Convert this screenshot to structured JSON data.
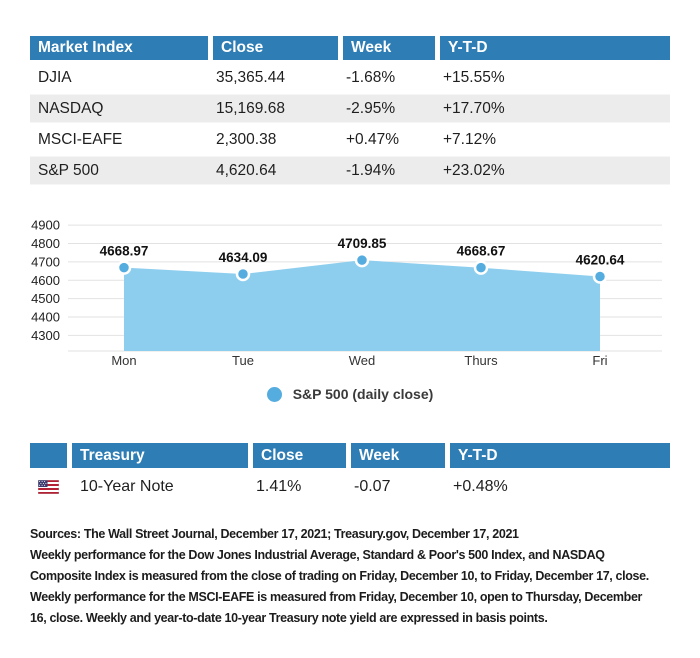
{
  "colors": {
    "header_blue": "#2e7db4",
    "row_stripe": "#ececec",
    "area_fill": "#8dceef",
    "marker_blue": "#55acdf",
    "gridline": "#e2e2e2",
    "flag_red": "#b22234",
    "flag_canton": "#3c3b6e"
  },
  "market_table": {
    "headers": [
      "Market Index",
      "Close",
      "Week",
      "Y-T-D"
    ],
    "rows": [
      {
        "name": "DJIA",
        "close": "35,365.44",
        "week": "-1.68%",
        "ytd": "+15.55%",
        "shaded": false
      },
      {
        "name": "NASDAQ",
        "close": "15,169.68",
        "week": "-2.95%",
        "ytd": "+17.70%",
        "shaded": true
      },
      {
        "name": "MSCI-EAFE",
        "close": "2,300.38",
        "week": "+0.47%",
        "ytd": "+7.12%",
        "shaded": false
      },
      {
        "name": "S&P 500",
        "close": "4,620.64",
        "week": "-1.94%",
        "ytd": "+23.02%",
        "shaded": true
      }
    ]
  },
  "chart_data": {
    "type": "area",
    "title": "",
    "xlabel": "",
    "ylabel": "",
    "categories": [
      "Mon",
      "Tue",
      "Wed",
      "Thurs",
      "Fri"
    ],
    "values": [
      4668.97,
      4634.09,
      4709.85,
      4668.67,
      4620.64
    ],
    "point_labels": [
      "4668.97",
      "4634.09",
      "4709.85",
      "4668.67",
      "4620.64"
    ],
    "yticks": [
      4900,
      4800,
      4700,
      4600,
      4500,
      4400,
      4300
    ],
    "ylim": [
      4215,
      4950
    ],
    "grid": true,
    "legend_position": "bottom",
    "series_name": "S&P 500 (daily close)"
  },
  "legend": {
    "label": "S&P 500 (daily close)",
    "dot_icon": "legend-dot-icon"
  },
  "treasury_table": {
    "headers": [
      "",
      "Treasury",
      "Close",
      "Week",
      "Y-T-D"
    ],
    "flag_icon": "us-flag-icon",
    "row": {
      "name": "10-Year Note",
      "close": "1.41%",
      "week": "-0.07",
      "ytd": "+0.48%"
    }
  },
  "footer": {
    "lines": [
      "Sources: The Wall Street Journal, December 17, 2021; Treasury.gov, December 17, 2021",
      "Weekly performance for the Dow Jones Industrial Average, Standard & Poor's 500 Index, and NASDAQ",
      "Composite Index is measured from the close of trading on Friday, December 10, to Friday, December 17, close.",
      "Weekly performance for the MSCI-EAFE is measured from Friday, December 10, open to Thursday, December",
      "16, close. Weekly and year-to-date 10-year Treasury note yield are expressed in basis points."
    ]
  }
}
